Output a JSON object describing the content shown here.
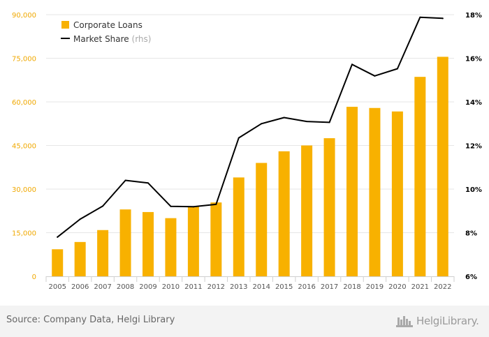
{
  "chart_data": {
    "type": "bar",
    "categories": [
      "2005",
      "2006",
      "2007",
      "2008",
      "2009",
      "2010",
      "2011",
      "2012",
      "2013",
      "2014",
      "2015",
      "2016",
      "2017",
      "2018",
      "2019",
      "2020",
      "2021",
      "2022"
    ],
    "series": [
      {
        "name": "Corporate Loans",
        "type": "bar",
        "axis": "left",
        "color": "#f8b100",
        "values": [
          9300,
          11800,
          15900,
          23000,
          22100,
          20000,
          24000,
          25400,
          34000,
          39000,
          43000,
          45000,
          47500,
          58300,
          57900,
          56700,
          68600,
          75500
        ]
      },
      {
        "name": "Market Share",
        "type": "line",
        "axis": "right",
        "color": "#000000",
        "values": [
          7.8,
          8.62,
          9.22,
          10.4,
          10.28,
          9.21,
          9.19,
          9.3,
          12.35,
          13.0,
          13.28,
          13.1,
          13.06,
          15.72,
          15.19,
          15.52,
          17.88,
          17.83
        ]
      }
    ],
    "legend": {
      "position": "top-left",
      "entries": [
        {
          "label": "Corporate Loans",
          "suffix": ""
        },
        {
          "label": "Market Share",
          "suffix": "(rhs)"
        }
      ]
    },
    "ylim": [
      0,
      90000
    ],
    "y_ticks": [
      0,
      15000,
      30000,
      45000,
      60000,
      75000,
      90000
    ],
    "y_tick_labels": [
      "0",
      "15,000",
      "30,000",
      "45,000",
      "60,000",
      "75,000",
      "90,000"
    ],
    "y_tick_color": "#f0a800",
    "y2lim": [
      6,
      18
    ],
    "y2_ticks": [
      6,
      8,
      10,
      12,
      14,
      16,
      18
    ],
    "y2_tick_labels": [
      "6%",
      "8%",
      "10%",
      "12%",
      "14%",
      "16%",
      "18%"
    ],
    "grid": true,
    "title": "",
    "xlabel": "",
    "ylabel": ""
  },
  "footer": {
    "source": "Source: Company Data, Helgi Library",
    "brand": "HelgiLibrary."
  }
}
